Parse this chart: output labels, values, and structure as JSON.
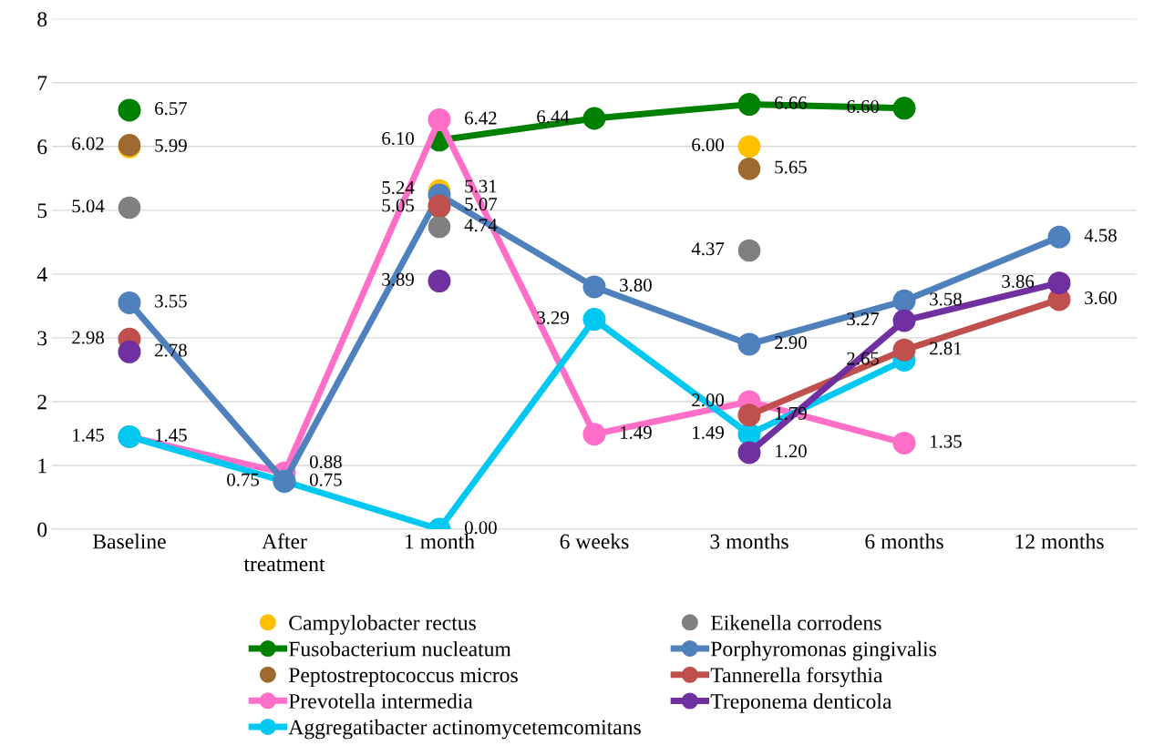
{
  "chart_data": {
    "type": "line",
    "categories": [
      "Baseline",
      "After\ntreatment",
      "1 month",
      "6 weeks",
      "3 months",
      "6 months",
      "12 months"
    ],
    "ylim": [
      0,
      8
    ],
    "yticks": [
      0,
      1,
      2,
      3,
      4,
      5,
      6,
      7,
      8
    ],
    "grid": "y",
    "legend": "bottom",
    "marker": "circle",
    "line_style": "solid",
    "series": [
      {
        "name": "Campylobacter rectus",
        "type": "scatter",
        "color": "#ffc000",
        "values": [
          5.99,
          null,
          5.31,
          null,
          6.0,
          null,
          null
        ],
        "value_labels": [
          "5.99",
          null,
          "5.31",
          null,
          "6.00",
          null,
          null
        ]
      },
      {
        "name": "Fusobacterium nucleatum",
        "color": "#008000",
        "values": [
          6.57,
          null,
          6.1,
          6.44,
          6.66,
          6.6,
          null
        ],
        "value_labels": [
          "6.57",
          null,
          "6.10",
          "6.44",
          "6.66",
          "6.60",
          null
        ]
      },
      {
        "name": "Peptostreptococcus micros",
        "type": "scatter",
        "color": "#9e6a2f",
        "values": [
          6.02,
          null,
          5.05,
          null,
          5.65,
          null,
          null
        ],
        "value_labels": [
          "6.02",
          null,
          "5.05",
          null,
          "5.65",
          null,
          null
        ]
      },
      {
        "name": "Prevotella intermedia",
        "color": "#ff6ec7",
        "values": [
          1.45,
          0.88,
          6.42,
          1.49,
          2.0,
          1.35,
          null
        ],
        "value_labels": [
          "1.45",
          "0.88",
          "6.42",
          "1.49",
          "2.00",
          "1.35",
          null
        ]
      },
      {
        "name": "Aggregatibacter actinomycetemcomitans",
        "color": "#00c8f0",
        "values": [
          1.45,
          0.75,
          0.0,
          3.29,
          1.49,
          2.65,
          null
        ],
        "value_labels": [
          "1.45",
          "0.75",
          "0.00",
          "3.29",
          "1.49",
          "2.65",
          null
        ]
      },
      {
        "name": "Eikenella corrodens",
        "type": "scatter",
        "color": "#808080",
        "values": [
          5.04,
          null,
          4.74,
          null,
          4.37,
          null,
          null
        ],
        "value_labels": [
          "5.04",
          null,
          "4.74",
          null,
          "4.37",
          null,
          null
        ]
      },
      {
        "name": "Porphyromonas gingivalis",
        "color": "#4f81bd",
        "values": [
          3.55,
          0.75,
          5.24,
          3.8,
          2.9,
          3.58,
          4.58
        ],
        "value_labels": [
          "3.55",
          "0.75",
          "5.24",
          "3.80",
          "2.90",
          "3.58",
          "4.58"
        ]
      },
      {
        "name": "Tannerella forsythia",
        "color": "#c0504d",
        "values": [
          2.98,
          null,
          5.07,
          null,
          1.79,
          2.81,
          3.6
        ],
        "value_labels": [
          "2.98",
          null,
          "5.07",
          null,
          "1.79",
          "2.81",
          "3.60"
        ]
      },
      {
        "name": "Treponema denticola",
        "color": "#7030a0",
        "values": [
          2.78,
          null,
          3.89,
          null,
          1.2,
          3.27,
          3.86
        ],
        "value_labels": [
          "2.78",
          null,
          "3.89",
          null,
          "1.20",
          "3.27",
          "3.86"
        ]
      }
    ]
  }
}
